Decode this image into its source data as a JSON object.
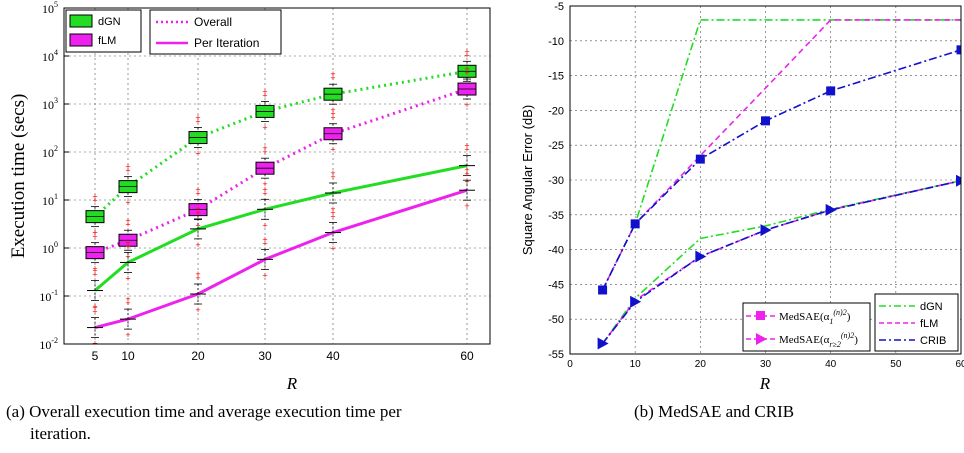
{
  "chart_data": [
    {
      "type": "line",
      "xlabel": "R",
      "ylabel": "Execution time (secs)",
      "yscale": "log",
      "x": [
        5,
        10,
        20,
        30,
        40,
        60
      ],
      "xticks": [
        "5",
        "10",
        "20",
        "30",
        "40",
        "60"
      ],
      "ylim": [
        0.01,
        100000
      ],
      "yticks": [
        {
          "base": "10",
          "exp": "-2"
        },
        {
          "base": "10",
          "exp": "-1"
        },
        {
          "base": "10",
          "exp": "0"
        },
        {
          "base": "10",
          "exp": "1"
        },
        {
          "base": "10",
          "exp": "2"
        },
        {
          "base": "10",
          "exp": "3"
        },
        {
          "base": "10",
          "exp": "4"
        },
        {
          "base": "10",
          "exp": "5"
        }
      ],
      "grid": true,
      "series": [
        {
          "name": "dGN",
          "kind": "Overall",
          "values": [
            4.5,
            19,
            200,
            700,
            1600,
            4800
          ],
          "color": "#22dd22",
          "style": "dotted"
        },
        {
          "name": "fLM",
          "kind": "Overall",
          "values": [
            0.8,
            1.45,
            6.3,
            46,
            240,
            2050
          ],
          "color": "#ee22ee",
          "style": "dotted"
        },
        {
          "name": "dGN",
          "kind": "Per Iteration",
          "values": [
            0.13,
            0.5,
            2.5,
            6.4,
            14,
            52
          ],
          "color": "#22dd22",
          "style": "solid"
        },
        {
          "name": "fLM",
          "kind": "Per Iteration",
          "values": [
            0.022,
            0.033,
            0.11,
            0.58,
            2.1,
            16
          ],
          "color": "#ee22ee",
          "style": "solid"
        }
      ],
      "legend_boxes": {
        "items": [
          "dGN",
          "fLM"
        ],
        "location": "top-left"
      },
      "legend_lines": {
        "items": [
          "Overall",
          "Per Iteration"
        ],
        "location": "top-left"
      }
    },
    {
      "type": "line",
      "xlabel": "R",
      "ylabel": "Square Angular Error (dB)",
      "x": [
        5,
        10,
        20,
        30,
        40,
        60
      ],
      "xlim": [
        0,
        60
      ],
      "xticks": [
        "0",
        "10",
        "20",
        "30",
        "40",
        "50",
        "60"
      ],
      "ylim": [
        -55,
        -5
      ],
      "yticks": [
        "-5",
        "-10",
        "-15",
        "-20",
        "-25",
        "-30",
        "-35",
        "-40",
        "-45",
        "-50",
        "-55"
      ],
      "grid": true,
      "series": [
        {
          "name": "dGN",
          "group": "alpha1",
          "values": [
            -45.8,
            -36.3,
            -7,
            -7,
            -7,
            -7
          ],
          "color": "#22dd22",
          "style": "dashdot"
        },
        {
          "name": "fLM",
          "group": "alpha1",
          "values": [
            -45.8,
            -36.3,
            -26.5,
            -16.8,
            -7,
            -7
          ],
          "color": "#ee22ee",
          "style": "dashed"
        },
        {
          "name": "CRIB",
          "group": "alpha1",
          "values": [
            -45.8,
            -36.3,
            -27,
            -21.5,
            -17.2,
            -11.3
          ],
          "color": "#1111cc",
          "style": "dashdot"
        },
        {
          "name": "dGN",
          "group": "alpha_r",
          "values": [
            -53.5,
            -47,
            -38.4,
            -36.6,
            -34.2,
            -30.1
          ],
          "color": "#22dd22",
          "style": "dashdot"
        },
        {
          "name": "fLM",
          "group": "alpha_r",
          "values": [
            -53.5,
            -47.3,
            -41,
            -37.2,
            -34.3,
            -30.1
          ],
          "color": "#ee22ee",
          "style": "dashed"
        },
        {
          "name": "CRIB",
          "group": "alpha_r",
          "values": [
            -53.5,
            -47.5,
            -41,
            -37.2,
            -34.3,
            -30.1
          ],
          "color": "#1111cc",
          "style": "dashdot"
        }
      ],
      "legend_markers": {
        "items": [
          "MedSAE(α1(n)2)",
          "MedSAE(αr≥2(n)2)"
        ],
        "location": "bottom-center"
      },
      "legend_lines": {
        "items": [
          "dGN",
          "fLM",
          "CRIB"
        ],
        "location": "bottom-right"
      }
    }
  ],
  "captions": {
    "a_line1": "(a)  Overall execution time and average execution time per",
    "a_line2": "iteration.",
    "b": "(b)  MedSAE and CRIB"
  }
}
